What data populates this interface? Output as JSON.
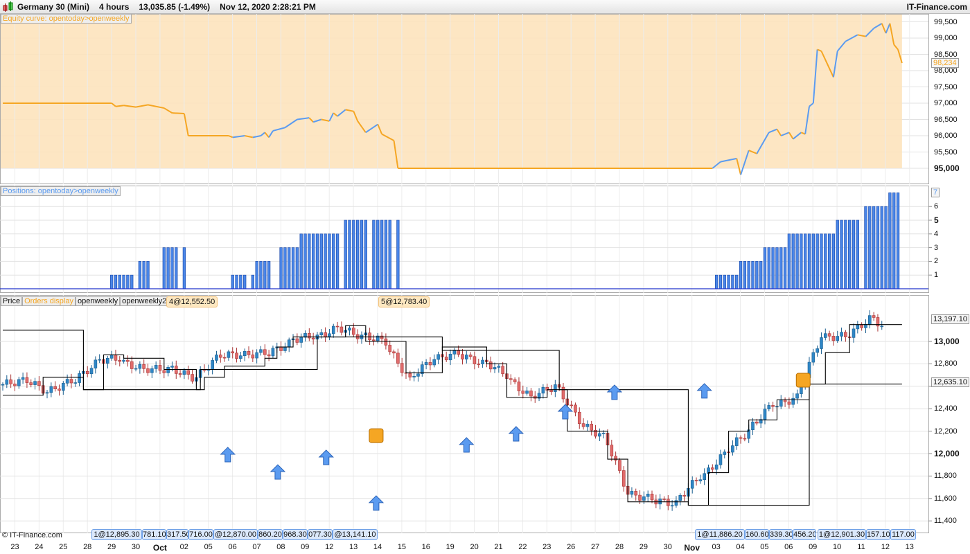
{
  "header": {
    "instrument": "Germany 30 (Mini)",
    "timeframe": "4 hours",
    "price": "13,035.85 (-1.49%)",
    "datetime": "Nov 12, 2020 2:28:21 PM",
    "brand": "IT-Finance.com"
  },
  "panels": {
    "equity_label": "Equity curve: opentoday>openweekly",
    "positions_label": "Positions: opentoday>openweekly",
    "price_tabs": [
      "Price",
      "Orders display",
      "openweekly",
      "openweekly2"
    ]
  },
  "copyright": "© IT-Finance.com",
  "colors": {
    "equity_fill": "#fde3bd",
    "equity_line_down": "#f5a623",
    "equity_line_up": "#5b9bf0",
    "bar": "#4a86e8",
    "bull": "#2f86c6",
    "bear": "#e06b6b",
    "order_square": "#f5a623",
    "arrow": "#5b9bf0"
  },
  "axes": {
    "equity_ticks": [
      "99,500",
      "99,000",
      "98,500",
      "98,000",
      "97,500",
      "97,000",
      "96,500",
      "96,000",
      "95,500",
      "95,000"
    ],
    "equity_last": "98,234",
    "positions_ticks": [
      "6",
      "5",
      "4",
      "3",
      "2",
      "1"
    ],
    "positions_last": "7",
    "price_ticks": [
      "13,000",
      "12,800",
      "12,400",
      "12,200",
      "12,000",
      "11,800",
      "11,600",
      "11,400"
    ],
    "price_boxes": [
      "13,197.10",
      "12,635.10"
    ],
    "x_labels": [
      "23",
      "24",
      "25",
      "28",
      "29",
      "30",
      "Oct",
      "02",
      "05",
      "06",
      "07",
      "08",
      "09",
      "12",
      "13",
      "14",
      "15",
      "16",
      "19",
      "20",
      "21",
      "22",
      "23",
      "26",
      "27",
      "28",
      "29",
      "30",
      "Nov",
      "03",
      "04",
      "05",
      "06",
      "09",
      "10",
      "11",
      "12",
      "13"
    ]
  },
  "orders_top": [
    "4@12,552.50",
    "5@12,783.40"
  ],
  "orders_bottom": [
    "1@12,895.30",
    "781.10",
    "317.50",
    "716.00",
    "@12,870.00",
    "860.20",
    "968.30",
    "077.30",
    "@13,141.10",
    "1@11,886.20",
    "160.60",
    "339.30",
    "456.20",
    "1@12,901.30",
    "157.10",
    "117.00"
  ],
  "chart_data": [
    {
      "type": "area",
      "title": "Equity curve: opentoday>openweekly",
      "bars_per_day": 6,
      "ylim": [
        94700,
        99700
      ],
      "points": [
        [
          0,
          97000
        ],
        [
          27,
          97000
        ],
        [
          28,
          96900
        ],
        [
          30,
          96930
        ],
        [
          33,
          96880
        ],
        [
          36,
          96950
        ],
        [
          40,
          96850
        ],
        [
          42,
          96700
        ],
        [
          45,
          96680
        ],
        [
          46,
          96000
        ],
        [
          56,
          96000
        ],
        [
          57,
          95950
        ],
        [
          60,
          96000
        ],
        [
          62,
          95950
        ],
        [
          64,
          96000
        ],
        [
          65,
          96100
        ],
        [
          66,
          95950
        ],
        [
          67,
          96150
        ],
        [
          70,
          96250
        ],
        [
          73,
          96500
        ],
        [
          76,
          96550
        ],
        [
          77,
          96420
        ],
        [
          79,
          96500
        ],
        [
          81,
          96450
        ],
        [
          82,
          96700
        ],
        [
          83,
          96600
        ],
        [
          85,
          96800
        ],
        [
          87,
          96750
        ],
        [
          88,
          96450
        ],
        [
          90,
          96100
        ],
        [
          93,
          96350
        ],
        [
          94,
          96050
        ],
        [
          97,
          95850
        ],
        [
          98,
          95000
        ],
        [
          176,
          95000
        ],
        [
          178,
          95200
        ],
        [
          182,
          95300
        ],
        [
          183,
          94800
        ],
        [
          185,
          95550
        ],
        [
          187,
          95450
        ],
        [
          190,
          96100
        ],
        [
          192,
          96200
        ],
        [
          193,
          96000
        ],
        [
          195,
          96100
        ],
        [
          196,
          95900
        ],
        [
          198,
          96100
        ],
        [
          199,
          96050
        ],
        [
          200,
          96900
        ],
        [
          201,
          97000
        ],
        [
          202,
          98650
        ],
        [
          203,
          98600
        ],
        [
          206,
          97800
        ],
        [
          207,
          98600
        ],
        [
          209,
          98900
        ],
        [
          212,
          99100
        ],
        [
          214,
          99050
        ],
        [
          216,
          99300
        ],
        [
          218,
          99450
        ],
        [
          219,
          99150
        ],
        [
          220,
          99450
        ],
        [
          221,
          98800
        ],
        [
          222,
          98650
        ],
        [
          223,
          98234
        ]
      ]
    },
    {
      "type": "bar",
      "title": "Positions: opentoday>openweekly",
      "ylim": [
        0,
        7
      ],
      "runs": [
        [
          27,
          31,
          1
        ],
        [
          32,
          32,
          1
        ],
        [
          34,
          36,
          2
        ],
        [
          40,
          43,
          3
        ],
        [
          45,
          45,
          3
        ],
        [
          57,
          60,
          1
        ],
        [
          62,
          62,
          1
        ],
        [
          63,
          66,
          2
        ],
        [
          69,
          73,
          3
        ],
        [
          74,
          83,
          4
        ],
        [
          85,
          90,
          5
        ],
        [
          92,
          96,
          5
        ],
        [
          98,
          98,
          5
        ],
        [
          177,
          182,
          1
        ],
        [
          183,
          188,
          2
        ],
        [
          189,
          194,
          3
        ],
        [
          195,
          206,
          4
        ],
        [
          207,
          212,
          5
        ],
        [
          214,
          219,
          6
        ],
        [
          220,
          222,
          7
        ]
      ]
    },
    {
      "type": "candlestick",
      "title": "Germany 30 (Mini) 4 hours",
      "ylim": [
        11330,
        13370
      ],
      "daily_closes": [
        12650,
        12550,
        12650,
        12800,
        12850,
        12750,
        12750,
        12680,
        12850,
        12880,
        12900,
        12980,
        13050,
        13120,
        13040,
        13000,
        12650,
        12850,
        12900,
        12800,
        12700,
        12500,
        12600,
        12300,
        12150,
        11650,
        11600,
        11550,
        11800,
        12000,
        12200,
        12450,
        12500,
        13050,
        13050,
        13200,
        13050
      ],
      "openweekly": [
        [
          0,
          13100
        ],
        [
          20,
          12570
        ],
        [
          49,
          12750
        ],
        [
          78,
          13040
        ],
        [
          109,
          12920
        ],
        [
          138,
          12570
        ],
        [
          170,
          11540
        ],
        [
          200,
          12620
        ],
        [
          223,
          12620
        ]
      ],
      "openweekly2": [
        [
          0,
          12520
        ],
        [
          10,
          12680
        ],
        [
          20,
          12570
        ],
        [
          25,
          12880
        ],
        [
          30,
          12850
        ],
        [
          40,
          12750
        ],
        [
          48,
          12570
        ],
        [
          50,
          12680
        ],
        [
          55,
          12780
        ],
        [
          65,
          12850
        ],
        [
          68,
          12950
        ],
        [
          72,
          13040
        ],
        [
          85,
          13140
        ],
        [
          90,
          13000
        ],
        [
          100,
          12720
        ],
        [
          109,
          12950
        ],
        [
          120,
          12800
        ],
        [
          125,
          12500
        ],
        [
          135,
          12570
        ],
        [
          140,
          12200
        ],
        [
          150,
          11950
        ],
        [
          155,
          11570
        ],
        [
          170,
          11540
        ],
        [
          175,
          11830
        ],
        [
          180,
          12200
        ],
        [
          185,
          12300
        ],
        [
          192,
          12480
        ],
        [
          200,
          12620
        ],
        [
          204,
          12900
        ],
        [
          210,
          13150
        ],
        [
          223,
          13150
        ]
      ],
      "buy_arrows": [
        [
          55.8,
          11988
        ],
        [
          68.2,
          11833
        ],
        [
          80.2,
          11963
        ],
        [
          92.6,
          11556
        ],
        [
          115,
          12074
        ],
        [
          127.3,
          12173
        ],
        [
          139.5,
          12370
        ],
        [
          151.7,
          12543
        ],
        [
          174,
          12556
        ]
      ],
      "order_markers": [
        [
          92.6,
          12160
        ],
        [
          198.5,
          12654
        ]
      ]
    }
  ]
}
